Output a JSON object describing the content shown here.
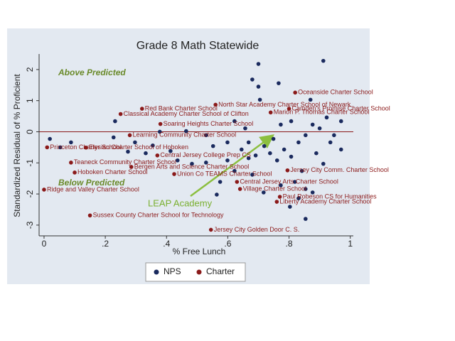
{
  "chart_data": {
    "type": "scatter",
    "title": "Grade 8 Math Statewide",
    "x_label": "% Free Lunch",
    "y_label": "Standardized Residual of % Proficient",
    "xlim": [
      -0.015,
      1.01
    ],
    "ylim": [
      -3.3,
      2.5
    ],
    "xticks": [
      {
        "value": 0,
        "label": "0"
      },
      {
        "value": 0.2,
        "label": ".2"
      },
      {
        "value": 0.4,
        "label": ".4"
      },
      {
        "value": 0.6,
        "label": ".6"
      },
      {
        "value": 0.8,
        "label": ".8"
      },
      {
        "value": 1,
        "label": "1"
      }
    ],
    "yticks": [
      -3,
      -2,
      -1,
      0,
      1,
      2
    ],
    "hline": 0,
    "hline_color": "#8b1a1a",
    "annotations": [
      "Above Predicted",
      "Below Predicted",
      "LEAP Academy"
    ],
    "series": [
      {
        "name": "NPS",
        "color": "#1a2a5e",
        "x": [
          0.912,
          0.7,
          0.68,
          0.766,
          0.7,
          0.705,
          0.87,
          0.232,
          0.227,
          0.088,
          0.053,
          0.019,
          0.297,
          0.332,
          0.274,
          0.355,
          0.464,
          0.529,
          0.552,
          0.599,
          0.645,
          0.668,
          0.691,
          0.719,
          0.738,
          0.761,
          0.784,
          0.807,
          0.831,
          0.854,
          0.877,
          0.9,
          0.923,
          0.947,
          0.97,
          0.935,
          0.889,
          0.842,
          0.819,
          0.854,
          0.877,
          0.831,
          0.803,
          0.854,
          0.773,
          0.717,
          0.68,
          0.622,
          0.575,
          0.564,
          0.599,
          0.529,
          0.483,
          0.436,
          0.413,
          0.378,
          0.622,
          0.657,
          0.749,
          0.773,
          0.807,
          0.97,
          0.912,
          0.668
        ],
        "y": [
          2.28,
          2.18,
          1.68,
          1.56,
          1.45,
          1.03,
          1.03,
          0.34,
          -0.18,
          -0.34,
          -0.5,
          -0.23,
          -0.34,
          -0.69,
          -0.64,
          -0.44,
          0.02,
          -0.11,
          -0.46,
          -0.34,
          -0.57,
          -0.85,
          -0.76,
          -0.46,
          -0.69,
          -0.92,
          -0.57,
          -0.8,
          -0.34,
          -0.11,
          0.23,
          0.11,
          0.46,
          -0.11,
          0.34,
          -0.34,
          -0.69,
          -1.26,
          -1.61,
          -1.84,
          -1.95,
          -2.14,
          -2.41,
          -2.8,
          -1.72,
          -1.95,
          -1.38,
          -1.26,
          -1.61,
          -2.02,
          -0.92,
          -0.99,
          -1.03,
          -0.92,
          -0.62,
          0.0,
          0.34,
          0.11,
          -0.23,
          0.23,
          0.34,
          -0.57,
          -1.03,
          -0.34
        ]
      },
      {
        "name": "Charter",
        "color": "#8b1a1a",
        "x": [
          0.82,
          0.56,
          0.32,
          0.25,
          0.8,
          0.74,
          0.38,
          0.28,
          0.01,
          0.137,
          0.37,
          0.088,
          0.285,
          0.1,
          0.425,
          0.0,
          0.63,
          0.64,
          0.77,
          0.76,
          0.15,
          0.545,
          0.795
        ],
        "y": [
          1.26,
          0.87,
          0.74,
          0.57,
          0.74,
          0.62,
          0.25,
          -0.11,
          -0.5,
          -0.51,
          -0.76,
          -0.99,
          -1.13,
          -1.31,
          -1.36,
          -1.86,
          -1.61,
          -1.84,
          -2.09,
          -2.25,
          -2.69,
          -3.15,
          -1.24
        ],
        "labels": [
          "Oceanside Charter School",
          "North Star Academy Charter School of Newark",
          "Red Bank Charter School",
          "Classical Academy Charter School of Clifton",
          "Camden's Promise Charter School",
          "Marion P. Thomas Charter School",
          "Soaring Heights Charter School",
          "Learning Community Charter School",
          "Princeton Charter School",
          "Elysian Charter School of Hoboken",
          "Central Jersey College Prep CS",
          "Teaneck Community Charter School",
          "Bergen Arts and Science Charter School",
          "Hoboken Charter School",
          "Union Co TEAMS Charter School",
          "Ridge and Valley Charter School",
          "Central Jersey Arts Charter School",
          "Village Charter School",
          "Paul Robeson CS for Humanities",
          "Liberty Academy Charter School",
          "Sussex County Charter School for Technology",
          "Jersey City Golden Door C. S.",
          "Jersey City Comm. Charter School"
        ]
      }
    ]
  }
}
